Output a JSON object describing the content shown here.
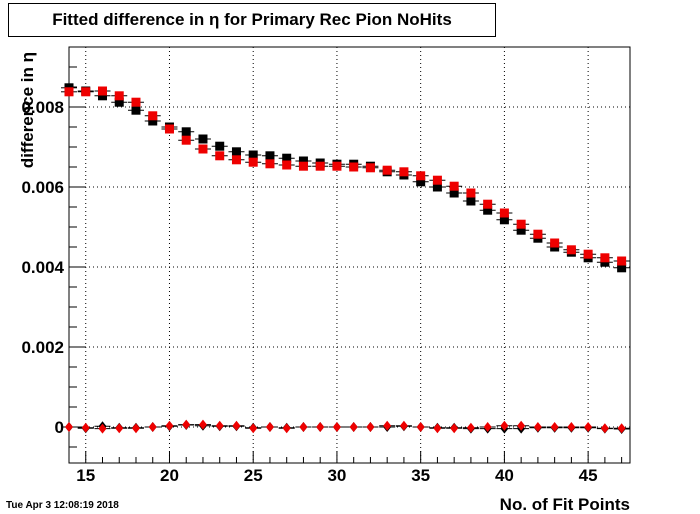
{
  "title": "Fitted difference in  η for Primary Rec Pion NoHits",
  "datestamp": "Tue Apr  3 12:08:19 2018",
  "chart_data": {
    "type": "scatter",
    "title": "Fitted difference in  η for Primary Rec Pion NoHits",
    "xlabel": "No. of Fit Points",
    "ylabel": "difference in  η",
    "xlim": [
      14,
      47.5
    ],
    "ylim": [
      -0.0009,
      0.0095
    ],
    "x_ticks": [
      15,
      20,
      25,
      30,
      35,
      40,
      45
    ],
    "y_ticks": [
      0,
      0.002,
      0.004,
      0.006,
      0.008
    ],
    "x_tick_labels": [
      "15",
      "20",
      "25",
      "30",
      "35",
      "40",
      "45"
    ],
    "y_tick_labels": [
      "0",
      "0.002",
      "0.004",
      "0.006",
      "0.008"
    ],
    "grid": true,
    "x": [
      14,
      15,
      16,
      17,
      18,
      19,
      20,
      21,
      22,
      23,
      24,
      25,
      26,
      27,
      28,
      29,
      30,
      31,
      32,
      33,
      34,
      35,
      36,
      37,
      38,
      39,
      40,
      41,
      42,
      43,
      44,
      45,
      46,
      47
    ],
    "series": [
      {
        "marker": "square",
        "color": "#000000",
        "values": [
          0.00848,
          0.0084,
          0.00828,
          0.00812,
          0.00792,
          0.00765,
          0.0075,
          0.00738,
          0.0072,
          0.00702,
          0.00688,
          0.0068,
          0.00678,
          0.00672,
          0.00665,
          0.0066,
          0.00657,
          0.00657,
          0.00652,
          0.00638,
          0.0063,
          0.00613,
          0.006,
          0.00585,
          0.00565,
          0.00542,
          0.00518,
          0.00492,
          0.00472,
          0.0045,
          0.00437,
          0.00423,
          0.00412,
          0.00398
        ]
      },
      {
        "marker": "square",
        "color": "#ee0000",
        "values": [
          0.00838,
          0.00838,
          0.0084,
          0.00828,
          0.00812,
          0.00778,
          0.00745,
          0.00717,
          0.00695,
          0.00678,
          0.00668,
          0.00662,
          0.00658,
          0.00655,
          0.00652,
          0.00652,
          0.00652,
          0.0065,
          0.00648,
          0.00642,
          0.00638,
          0.00628,
          0.00617,
          0.00602,
          0.00585,
          0.00557,
          0.00535,
          0.00507,
          0.00482,
          0.0046,
          0.00443,
          0.00432,
          0.00423,
          0.00415
        ]
      },
      {
        "marker": "diamond",
        "color": "#000000",
        "values": [
          0.0,
          -3e-05,
          2e-05,
          -2e-05,
          -2e-05,
          0.0,
          2e-05,
          5e-05,
          3e-05,
          2e-05,
          2e-05,
          -2e-05,
          0.0,
          -2e-05,
          0.0,
          0.0,
          0.0,
          0.0,
          0.0,
          0.0,
          2e-05,
          0.0,
          -2e-05,
          -2e-05,
          -4e-05,
          -4e-05,
          -4e-05,
          -4e-05,
          -2e-05,
          -2e-05,
          -2e-05,
          -2e-05,
          -4e-05,
          -5e-05
        ]
      },
      {
        "marker": "diamond",
        "color": "#ee0000",
        "values": [
          0.0,
          -2e-05,
          -4e-05,
          -3e-05,
          -3e-05,
          0.0,
          3e-05,
          6e-05,
          6e-05,
          3e-05,
          3e-05,
          -3e-05,
          0.0,
          -3e-05,
          0.0,
          0.0,
          0.0,
          0.0,
          0.0,
          3e-05,
          3e-05,
          0.0,
          -3e-05,
          -3e-05,
          -2e-05,
          0.0,
          3e-05,
          3e-05,
          0.0,
          0.0,
          0.0,
          0.0,
          -3e-05,
          -3e-05
        ]
      }
    ]
  }
}
